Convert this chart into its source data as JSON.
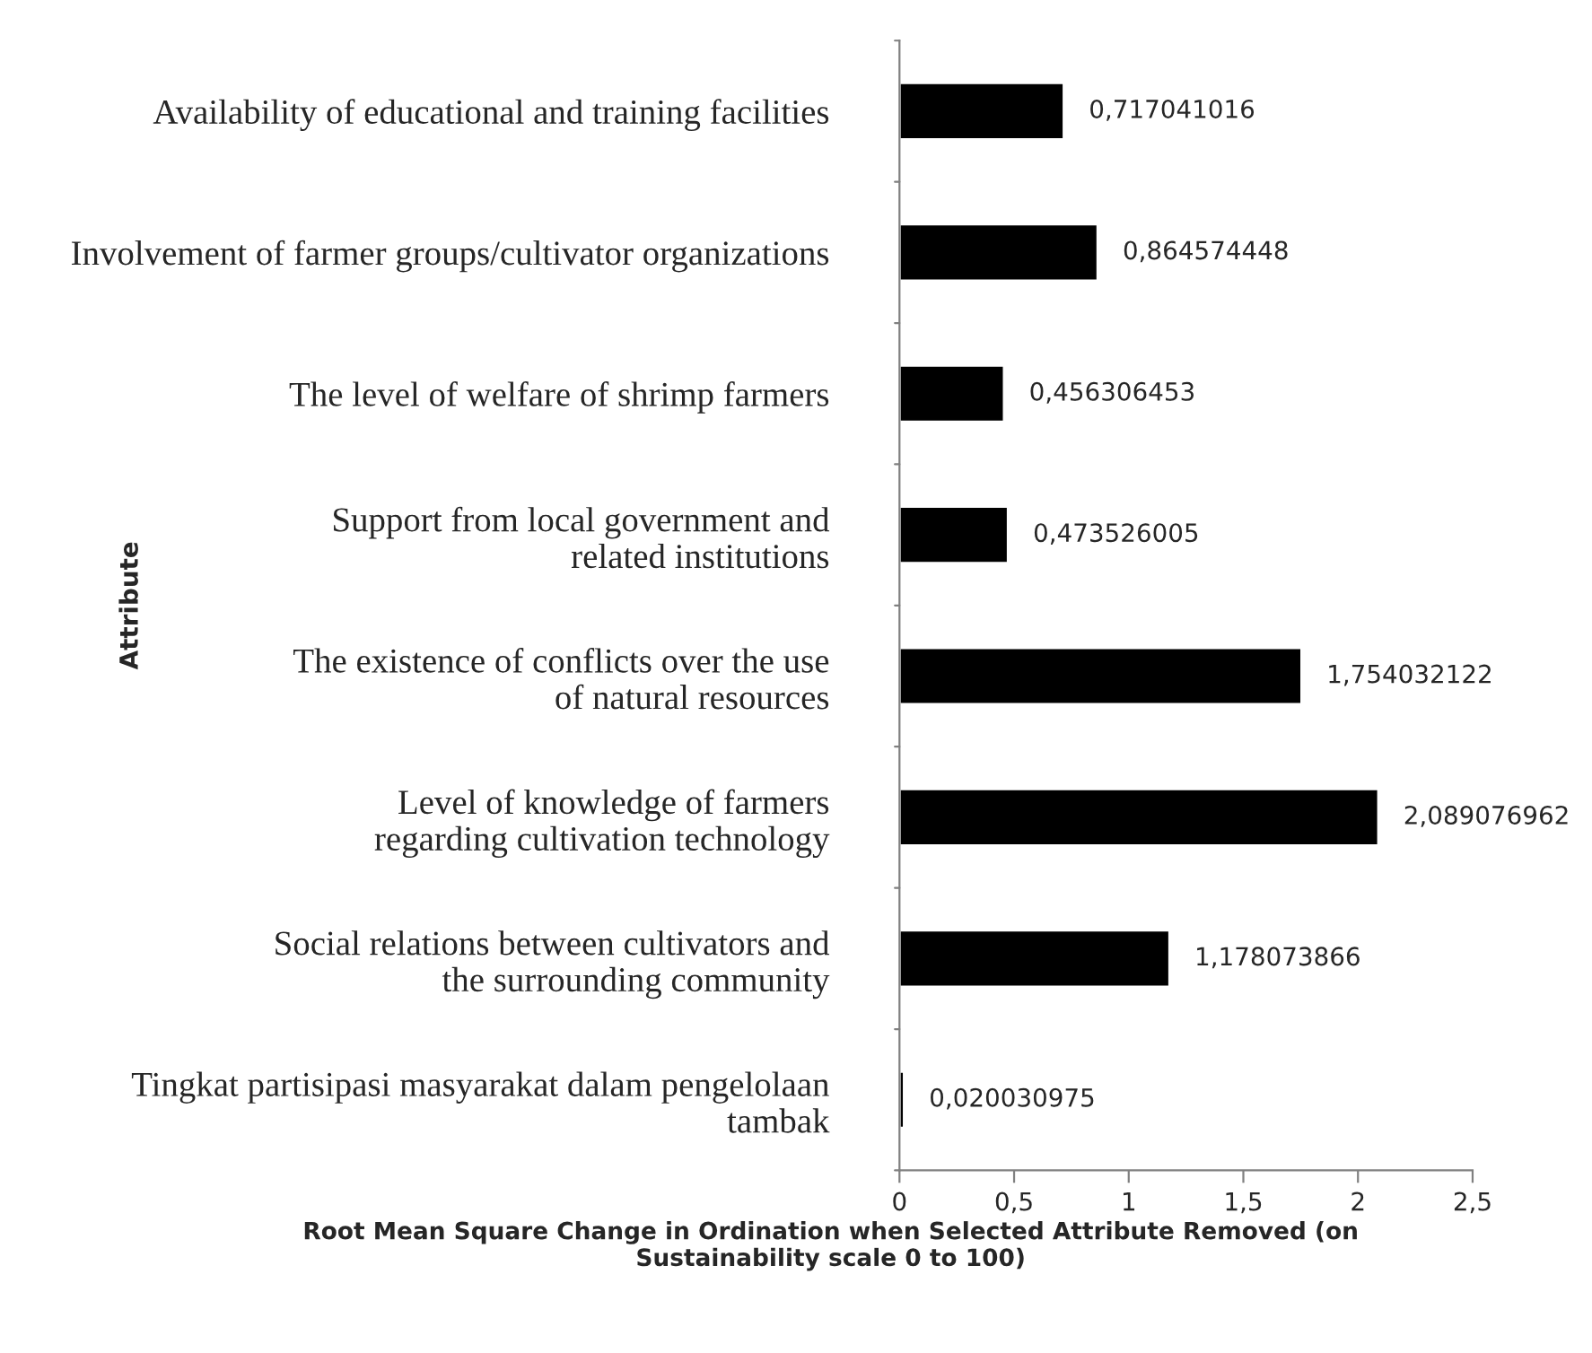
{
  "chart_data": {
    "type": "bar",
    "orientation": "horizontal",
    "categories": [
      "Availability of educational and training facilities",
      "Involvement of farmer groups/cultivator organizations",
      "The level of welfare of shrimp farmers",
      "Support from local government and\nrelated institutions",
      "The existence of conflicts over the use\nof natural resources",
      "Level of knowledge of farmers\nregarding cultivation technology",
      "Social relations between cultivators and\nthe surrounding community",
      "Tingkat partisipasi masyarakat dalam pengelolaan\ntambak"
    ],
    "values": [
      0.717041016,
      0.864574448,
      0.456306453,
      0.473526005,
      1.754032122,
      2.089076962,
      1.178073866,
      0.020030975
    ],
    "value_labels": [
      "0,717041016",
      "0,864574448",
      "0,456306453",
      "0,473526005",
      "1,754032122",
      "2,089076962",
      "1,178073866",
      "0,020030975"
    ],
    "color": "#000000",
    "xlim": [
      0,
      2.5
    ],
    "xticks": [
      0,
      {
        "value": 0.5,
        "label": "0,5"
      },
      1,
      {
        "value": 1.5,
        "label": "1,5"
      },
      2,
      {
        "value": 2.5,
        "label": "2,5"
      }
    ],
    "xlabel": "Root Mean Square Change in Ordination when Selected Attribute Removed (on\nSustainability scale 0 to 100)",
    "ylabel": "Attribute",
    "grid": false,
    "legend": false
  }
}
